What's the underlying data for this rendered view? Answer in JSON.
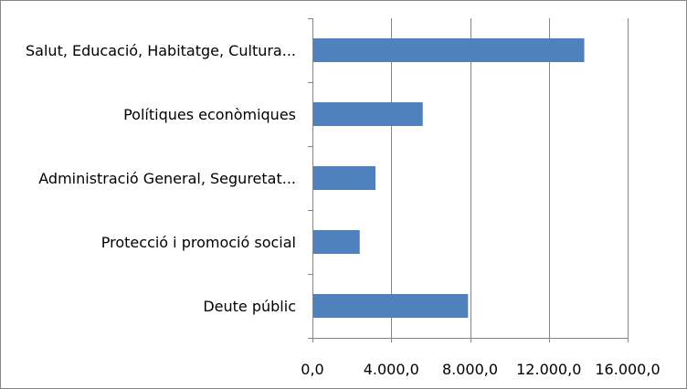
{
  "chart_data": {
    "type": "bar",
    "orientation": "horizontal",
    "categories": [
      "Salut, Educació, Habitatge, Cultura...",
      "Polítiques econòmiques",
      "Administració General, Seguretat...",
      "Protecció i promoció social",
      "Deute públic"
    ],
    "values": [
      13800,
      5600,
      3200,
      2400,
      7900
    ],
    "xlim": [
      0,
      16000
    ],
    "xticks": [
      0,
      4000,
      8000,
      12000,
      16000
    ],
    "xtick_labels": [
      "0,0",
      "4.000,0",
      "8.000,0",
      "12.000,0",
      "16.000,0"
    ],
    "grid": true,
    "legend": "none",
    "bar_color": "#4F81BD"
  }
}
